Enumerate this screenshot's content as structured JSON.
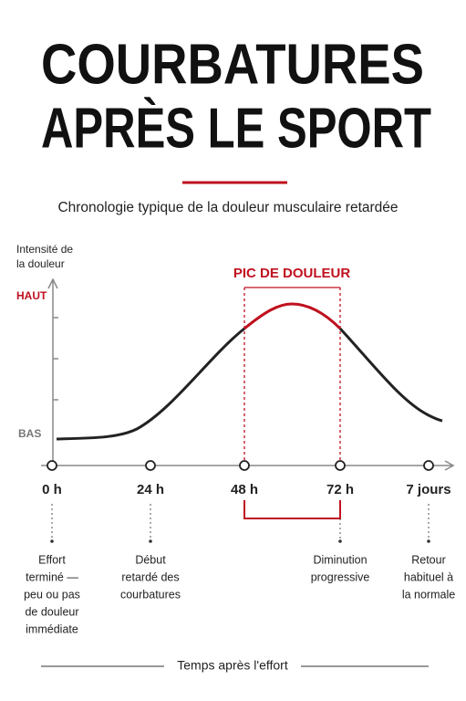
{
  "title": [
    "COURBATURES",
    "APRÈS LE SPORT"
  ],
  "subtitle": "Chronologie typique de la douleur musculaire retardée",
  "y_axis": {
    "label": [
      "Intensité de",
      "la douleur"
    ],
    "high": "HAUT",
    "low": "BAS"
  },
  "peak_label": "PIC DE DOULEUR",
  "timeline": [
    {
      "label": "0 h",
      "description": [
        "Effort",
        "terminé —",
        "peu ou pas",
        "de douleur",
        "immédiate"
      ]
    },
    {
      "label": "24 h",
      "description": [
        "Début",
        "retardé des",
        "courbatures"
      ]
    },
    {
      "label": "48 h",
      "description": []
    },
    {
      "label": "72 h",
      "description": [
        "Diminution",
        "progressive"
      ]
    },
    {
      "label": "7 jours",
      "description": [
        "Retour",
        "habituel à",
        "la normale"
      ]
    }
  ],
  "x_axis_label": "Temps après l'effort"
}
